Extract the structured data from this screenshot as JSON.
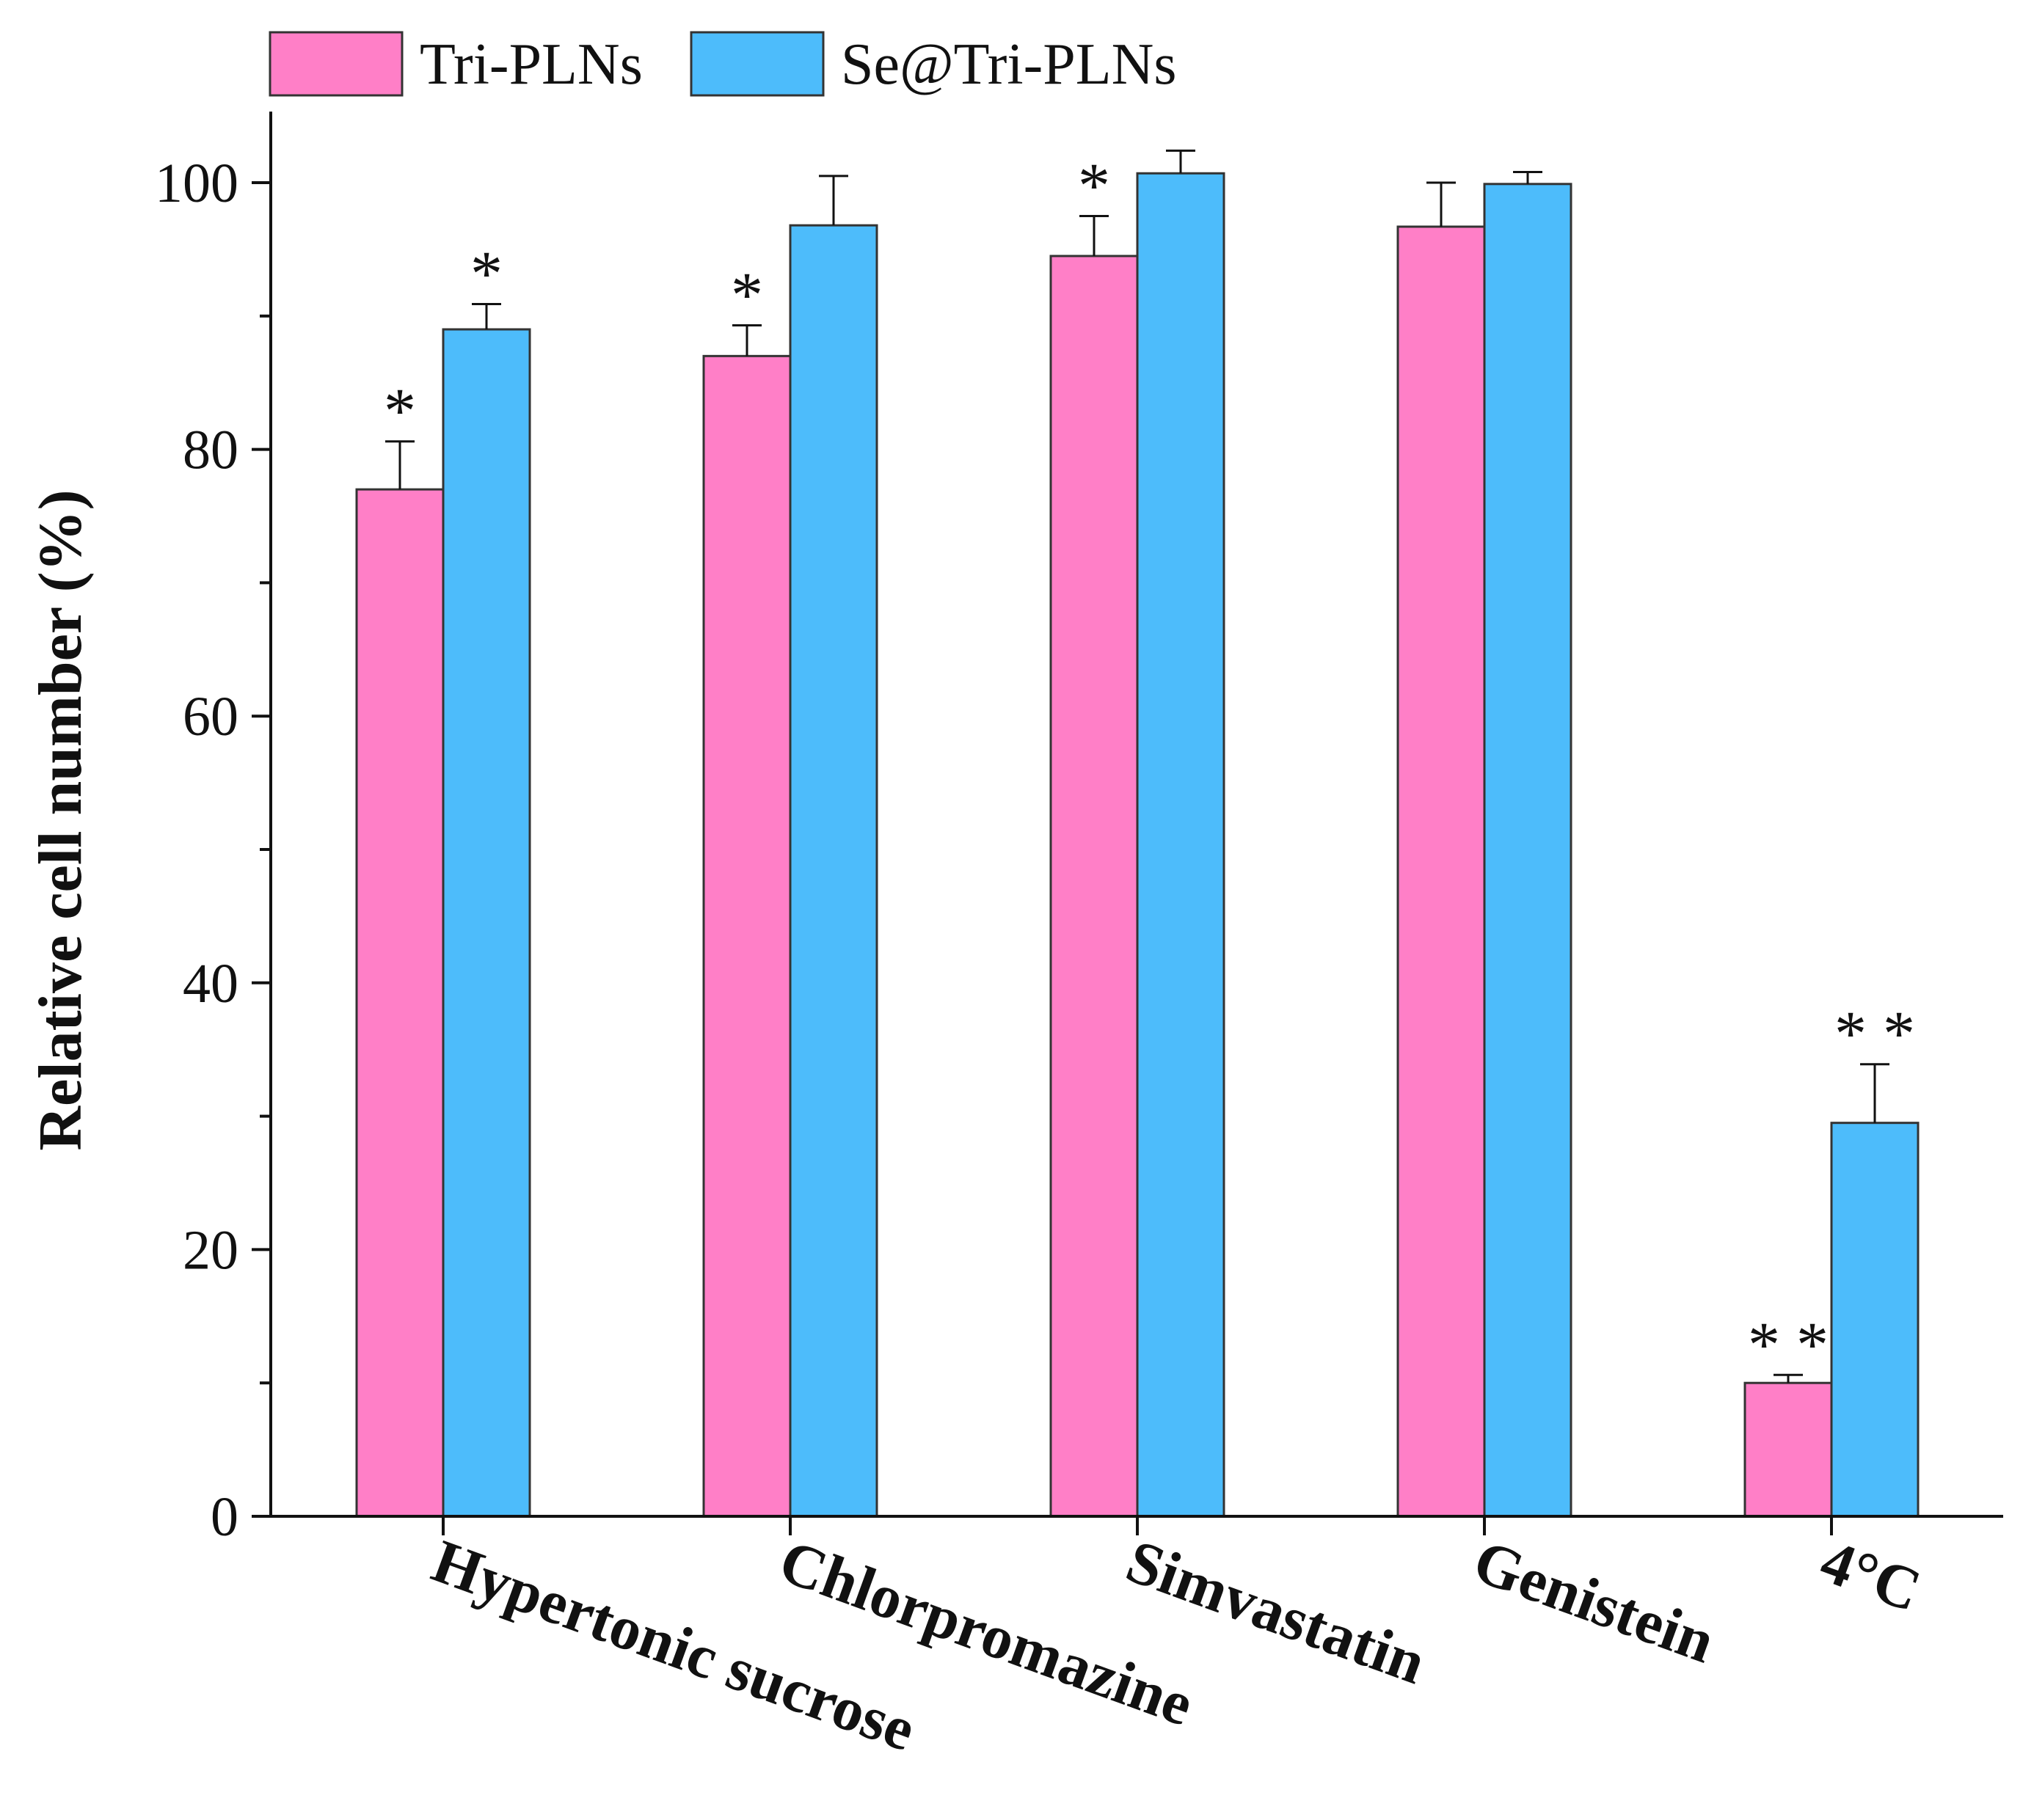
{
  "chart_data": {
    "type": "bar",
    "title": "",
    "xlabel": "",
    "ylabel": "Relative cell number (%)",
    "ylim": [
      0,
      105
    ],
    "yticks": [
      0,
      20,
      40,
      60,
      80,
      100
    ],
    "legend_position": "top-left",
    "categories": [
      "Hypertonic sucrose",
      "Chlorpromazine",
      "Simvastatin",
      "Genistein",
      "4°C"
    ],
    "series": [
      {
        "name": "Tri-PLNs",
        "color": "#ff7fc7",
        "values": [
          77,
          87,
          94.5,
          96.7,
          10
        ],
        "errors": [
          3.6,
          2.3,
          3.0,
          3.3,
          0.6
        ],
        "significance": [
          "*",
          "*",
          "*",
          "",
          "**"
        ]
      },
      {
        "name": "Se@Tri-PLNs",
        "color": "#4dbcfb",
        "values": [
          89,
          96.8,
          100.7,
          99.9,
          29.5
        ],
        "errors": [
          1.9,
          3.7,
          1.7,
          0.9,
          4.4
        ],
        "significance": [
          "*",
          "",
          "",
          "",
          "**"
        ]
      }
    ]
  }
}
